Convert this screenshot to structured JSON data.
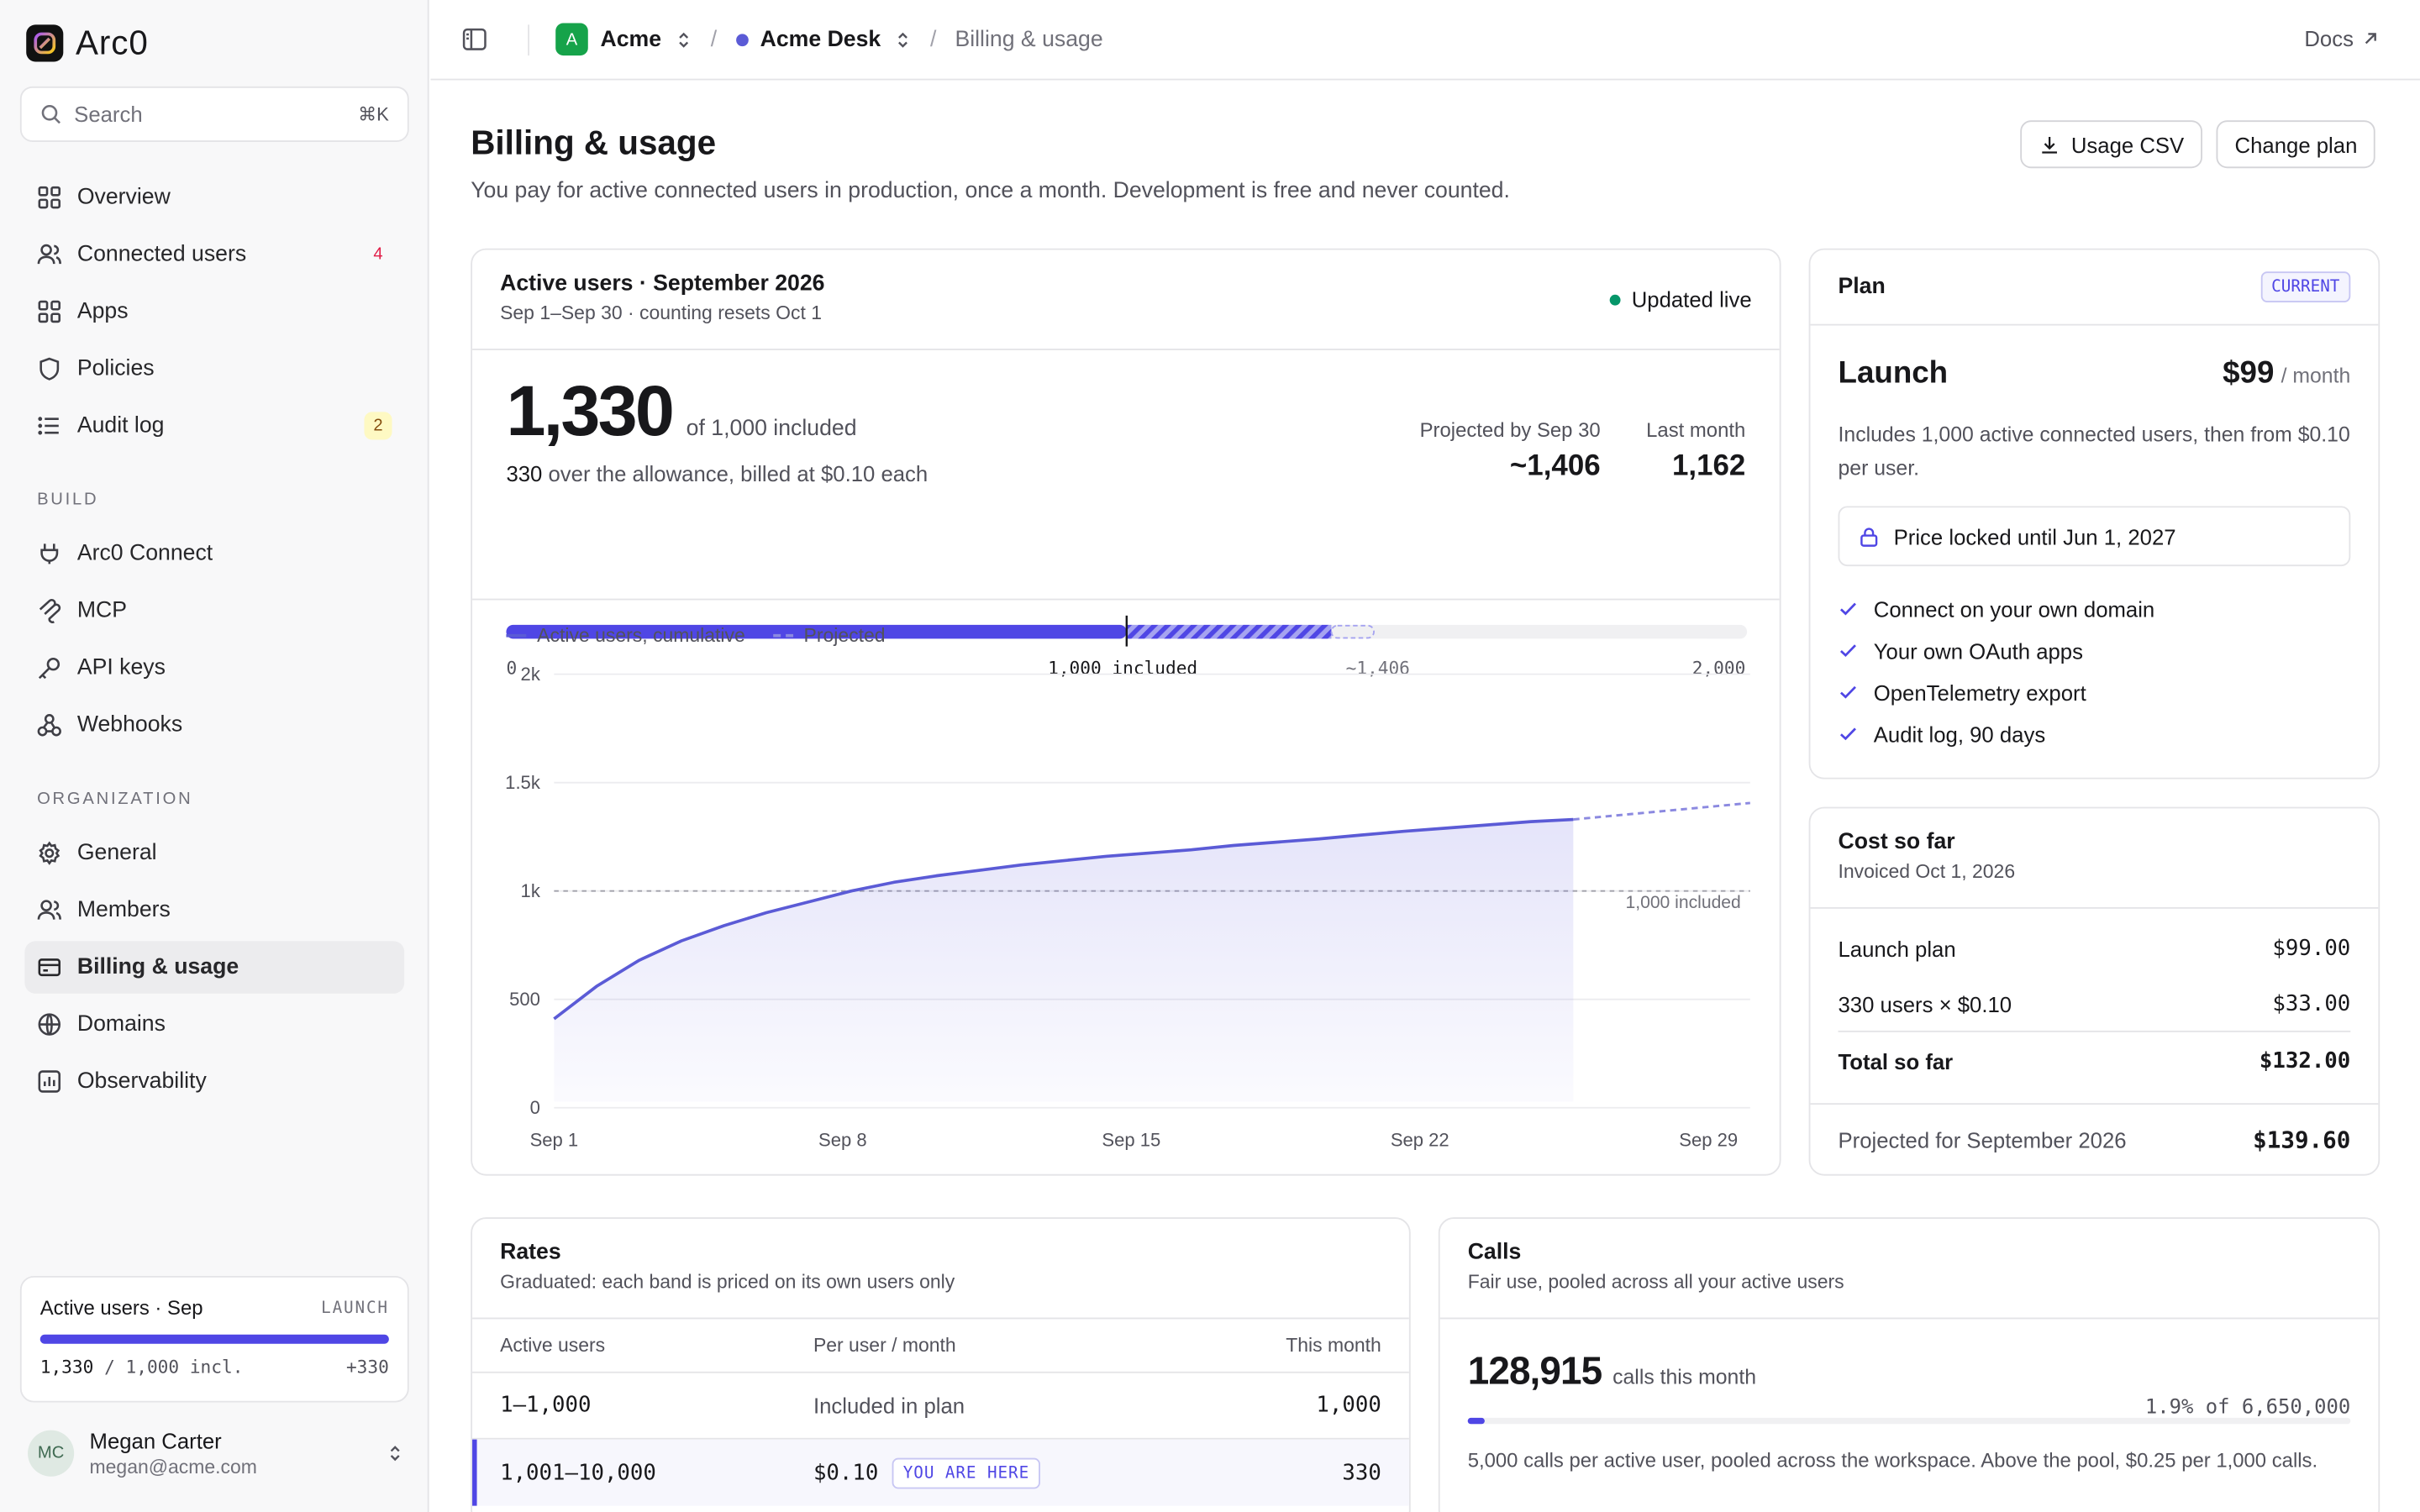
{
  "app": {
    "name": "Arc0"
  },
  "search": {
    "placeholder": "Search",
    "shortcut": "⌘K"
  },
  "nav": {
    "overview": "Overview",
    "connected_users": "Connected users",
    "connected_users_badge": "4",
    "apps": "Apps",
    "policies": "Policies",
    "audit_log": "Audit log",
    "audit_log_badge": "2",
    "build_label": "BUILD",
    "arc0_connect": "Arc0 Connect",
    "mcp": "MCP",
    "api_keys": "API keys",
    "webhooks": "Webhooks",
    "org_label": "ORGANIZATION",
    "general": "General",
    "members": "Members",
    "billing": "Billing & usage",
    "domains": "Domains",
    "observability": "Observability"
  },
  "sidebar_usage": {
    "title": "Active users · Sep",
    "plan": "LAUNCH",
    "count": "1,330",
    "of": "/ 1,000 incl.",
    "over": "+330",
    "fill": 1.0
  },
  "user": {
    "initials": "MC",
    "name": "Megan Carter",
    "email": "megan@acme.com"
  },
  "topbar": {
    "org_initial": "A",
    "org": "Acme",
    "app": "Acme Desk",
    "page": "Billing & usage",
    "docs": "Docs"
  },
  "page": {
    "title": "Billing & usage",
    "subtitle": "You pay for active connected users in production, once a month. Development is free and never counted.",
    "usage_csv": "Usage CSV",
    "change_plan": "Change plan"
  },
  "active": {
    "title": "Active users · September 2026",
    "subtitle": "Sep 1–Sep 30 · counting resets Oct 1",
    "live": "Updated live",
    "count": "1,330",
    "of_included": "of 1,000 included",
    "over_num": "330",
    "over_text": "over the allowance, billed at $0.10 each",
    "projected_label": "Projected by Sep 30",
    "projected_value": "~1,406",
    "last_month_label": "Last month",
    "last_month_value": "1,162",
    "scale_min": "0",
    "scale_included": "1,000 included",
    "scale_projected": "~1,406",
    "scale_max": "2,000",
    "legend_actual": "Active users, cumulative",
    "legend_projected": "Projected",
    "included_line_label": "1,000 included"
  },
  "chart_data": {
    "type": "area",
    "x": [
      "Sep 1",
      "Sep 2",
      "Sep 3",
      "Sep 4",
      "Sep 5",
      "Sep 6",
      "Sep 7",
      "Sep 8",
      "Sep 9",
      "Sep 10",
      "Sep 11",
      "Sep 12",
      "Sep 13",
      "Sep 14",
      "Sep 15",
      "Sep 16",
      "Sep 17",
      "Sep 18",
      "Sep 19",
      "Sep 20",
      "Sep 21",
      "Sep 22",
      "Sep 23",
      "Sep 24",
      "Sep 25"
    ],
    "series": [
      {
        "name": "Active users, cumulative",
        "values": [
          410,
          560,
          680,
          770,
          840,
          900,
          950,
          1000,
          1040,
          1070,
          1095,
          1120,
          1140,
          1160,
          1175,
          1190,
          1210,
          1225,
          1240,
          1258,
          1275,
          1290,
          1305,
          1320,
          1330
        ]
      },
      {
        "name": "Projected",
        "x": [
          "Sep 25",
          "Sep 30"
        ],
        "values": [
          1330,
          1406
        ]
      }
    ],
    "reference_line": {
      "value": 1000,
      "label": "1,000 included"
    },
    "xticks": [
      "Sep 1",
      "Sep 8",
      "Sep 15",
      "Sep 22",
      "Sep 29"
    ],
    "yticks": [
      "0",
      "500",
      "1k",
      "1.5k",
      "2k"
    ],
    "ylim": [
      0,
      2000
    ],
    "grid": true,
    "legend": "top-left"
  },
  "plan": {
    "label": "Plan",
    "current": "CURRENT",
    "name": "Launch",
    "price": "$99",
    "per": "/ month",
    "desc": "Includes 1,000 active connected users, then from $0.10 per user.",
    "locked": "Price locked until Jun 1, 2027",
    "features": [
      "Connect on your own domain",
      "Your own OAuth apps",
      "OpenTelemetry export",
      "Audit log, 90 days"
    ]
  },
  "cost": {
    "title": "Cost so far",
    "subtitle": "Invoiced Oct 1, 2026",
    "line1_label": "Launch plan",
    "line1_value": "$99.00",
    "line2_label": "330 users × $0.10",
    "line2_value": "$33.00",
    "total_label": "Total so far",
    "total_value": "$132.00",
    "projected_label": "Projected for September 2026",
    "projected_value": "$139.60"
  },
  "rates": {
    "title": "Rates",
    "subtitle": "Graduated: each band is priced on its own users only",
    "col1": "Active users",
    "col2": "Per user / month",
    "col3": "This month",
    "rows": [
      {
        "band": "1–1,000",
        "price": "Included in plan",
        "count": "1,000"
      },
      {
        "band": "1,001–10,000",
        "price": "$0.10",
        "tag": "YOU ARE HERE",
        "count": "330"
      }
    ]
  },
  "calls": {
    "title": "Calls",
    "subtitle": "Fair use, pooled across all your active users",
    "count": "128,915",
    "count_label": "calls this month",
    "pct": "1.9% of 6,650,000",
    "fill": 0.019,
    "note": "5,000 calls per active user, pooled across the workspace. Above the pool, $0.25 per 1,000 calls."
  }
}
